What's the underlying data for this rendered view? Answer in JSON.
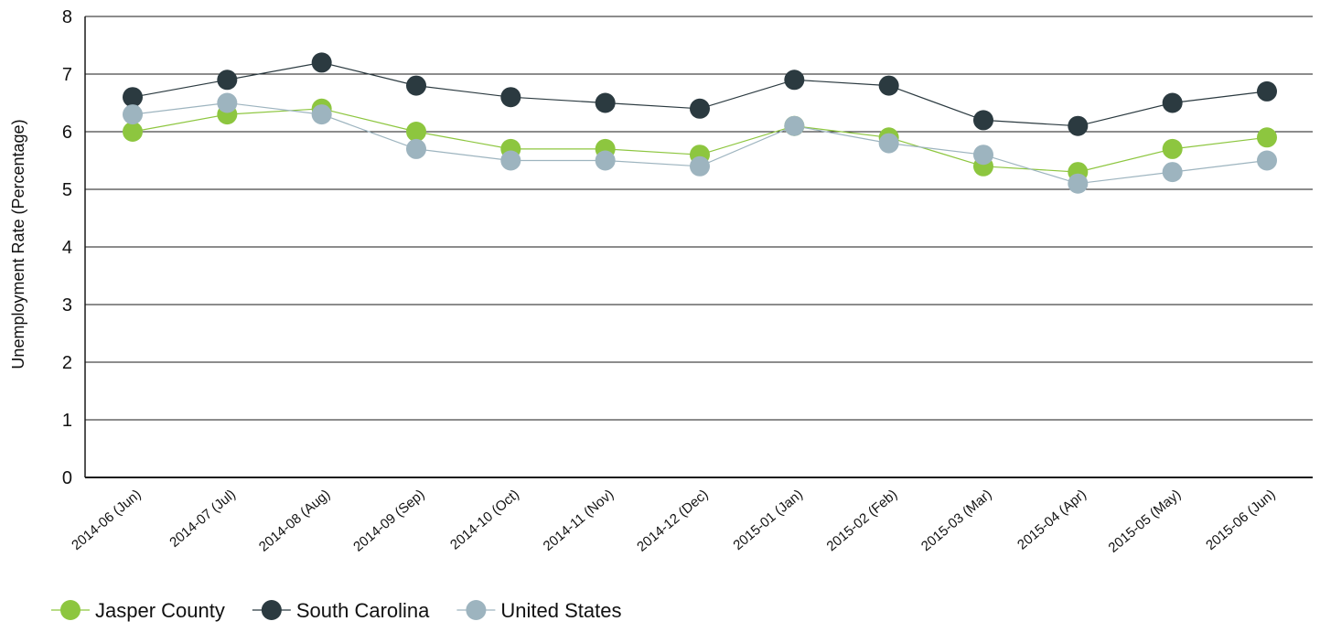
{
  "chart_data": {
    "type": "line",
    "title": "",
    "xlabel": "",
    "ylabel": "Unemployment Rate (Percentage)",
    "ylim": [
      0,
      8
    ],
    "yticks": [
      0,
      1,
      2,
      3,
      4,
      5,
      6,
      7,
      8
    ],
    "grid": true,
    "legend_position": "bottom-left",
    "categories": [
      "2014-06 (Jun)",
      "2014-07 (Jul)",
      "2014-08 (Aug)",
      "2014-09 (Sep)",
      "2014-10 (Oct)",
      "2014-11 (Nov)",
      "2014-12 (Dec)",
      "2015-01 (Jan)",
      "2015-02 (Feb)",
      "2015-03 (Mar)",
      "2015-04 (Apr)",
      "2015-05 (May)",
      "2015-06 (Jun)"
    ],
    "series": [
      {
        "name": "Jasper County",
        "color": "#8dc63f",
        "values": [
          6.0,
          6.3,
          6.4,
          6.0,
          5.7,
          5.7,
          5.6,
          6.1,
          5.9,
          5.4,
          5.3,
          5.7,
          5.9
        ]
      },
      {
        "name": "South Carolina",
        "color": "#2b3a40",
        "values": [
          6.6,
          6.9,
          7.2,
          6.8,
          6.6,
          6.5,
          6.4,
          6.9,
          6.8,
          6.2,
          6.1,
          6.5,
          6.7
        ]
      },
      {
        "name": "United States",
        "color": "#9db4bf",
        "values": [
          6.3,
          6.5,
          6.3,
          5.7,
          5.5,
          5.5,
          5.4,
          6.1,
          5.8,
          5.6,
          5.1,
          5.3,
          5.5
        ]
      }
    ]
  }
}
